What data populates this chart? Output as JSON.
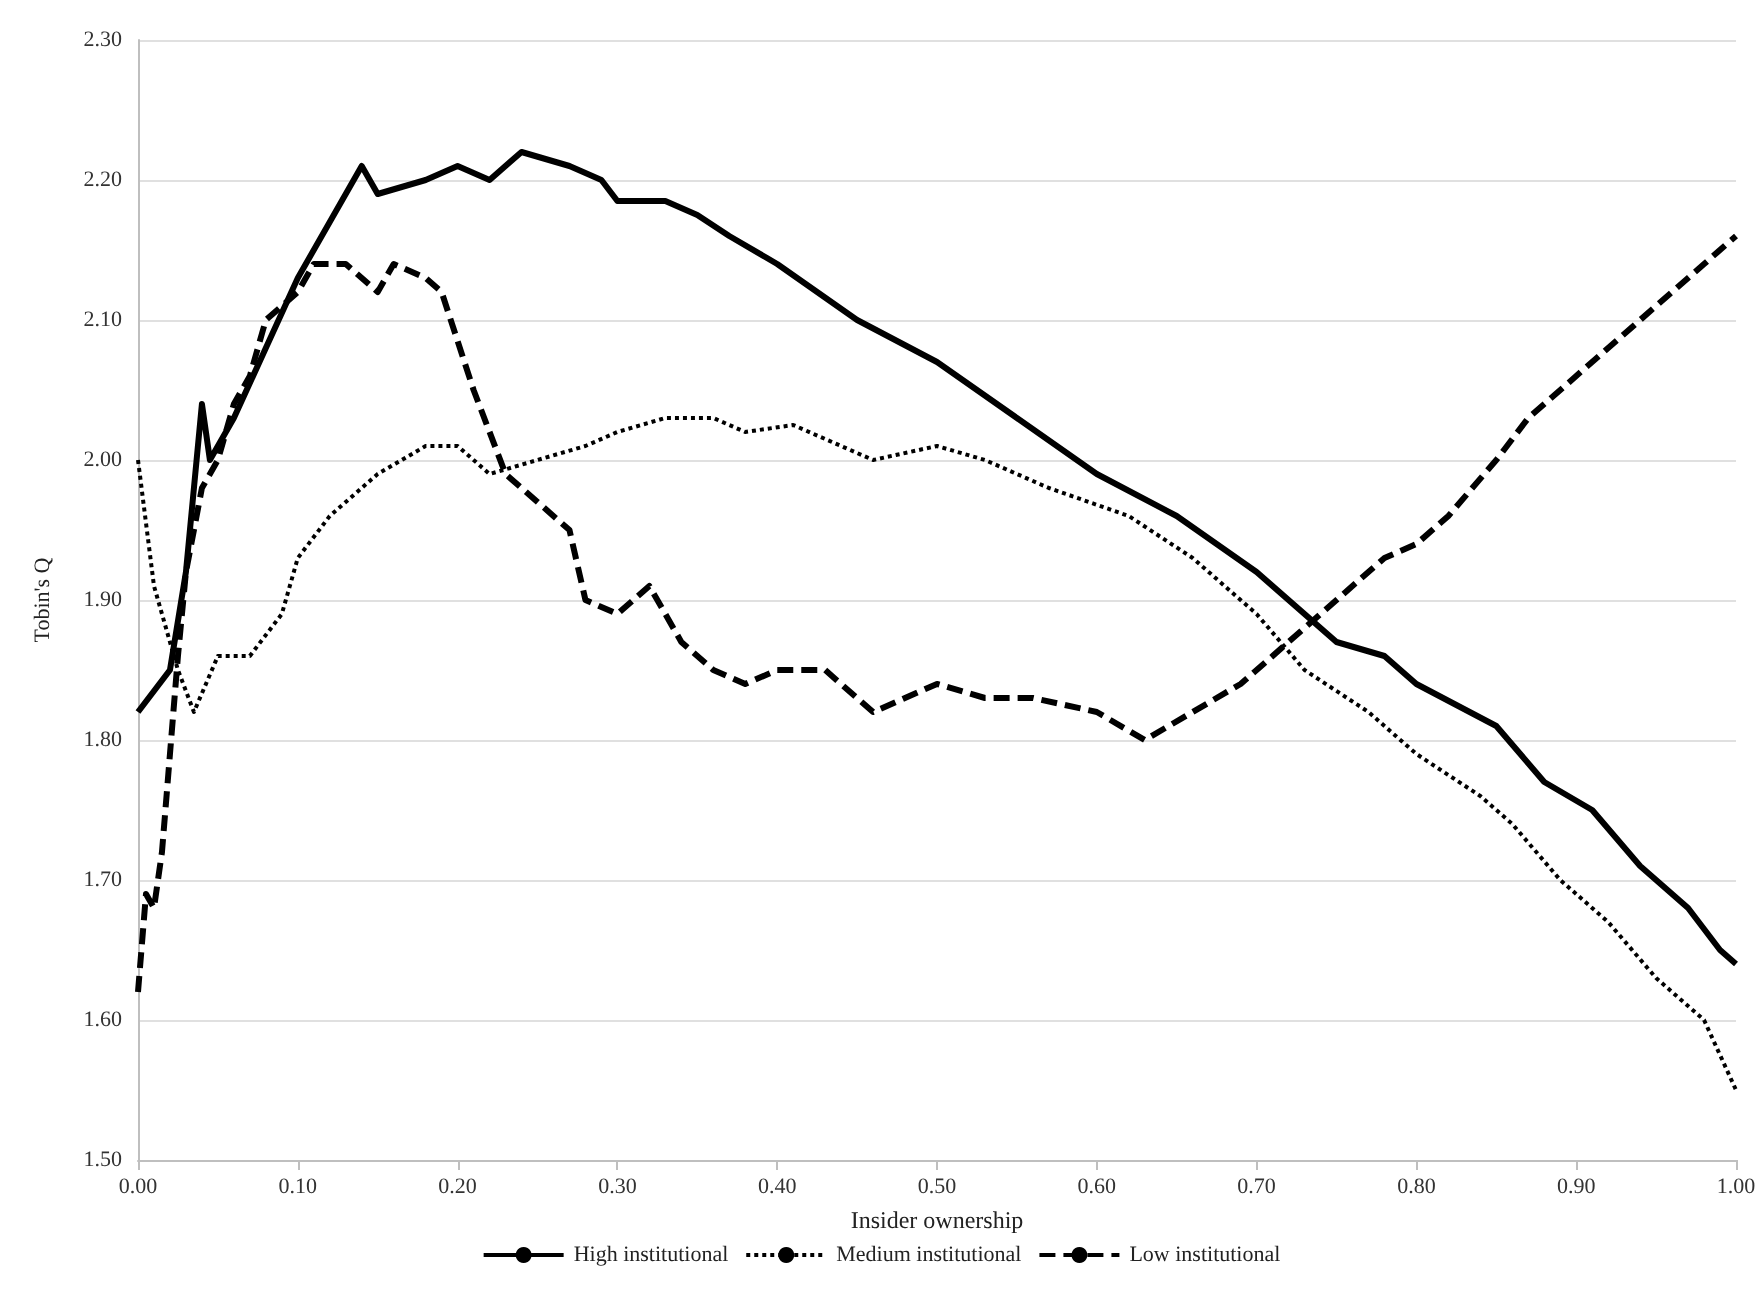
{
  "chart_data": {
    "type": "line",
    "xlabel": "Insider ownership",
    "ylabel": "Tobin's Q",
    "xlim": [
      0,
      1
    ],
    "xticks": [
      {
        "value": 0,
        "label": "0.00"
      },
      {
        "value": 0.1,
        "label": "0.10"
      },
      {
        "value": 0.2,
        "label": "0.20"
      },
      {
        "value": 0.3,
        "label": "0.30"
      },
      {
        "value": 0.4,
        "label": "0.40"
      },
      {
        "value": 0.5,
        "label": "0.50"
      },
      {
        "value": 0.6,
        "label": "0.60"
      },
      {
        "value": 0.7,
        "label": "0.70"
      },
      {
        "value": 0.8,
        "label": "0.80"
      },
      {
        "value": 0.9,
        "label": "0.90"
      },
      {
        "value": 1,
        "label": "1.00"
      }
    ],
    "ylim": [
      1.5,
      2.3
    ],
    "yticks": [
      {
        "value": 1.5,
        "label": "1.50"
      },
      {
        "value": 1.6,
        "label": "1.60"
      },
      {
        "value": 1.7,
        "label": "1.70"
      },
      {
        "value": 1.8,
        "label": "1.80"
      },
      {
        "value": 1.9,
        "label": "1.90"
      },
      {
        "value": 2.0,
        "label": "2.00"
      },
      {
        "value": 2.1,
        "label": "2.10"
      },
      {
        "value": 2.2,
        "label": "2.20"
      },
      {
        "value": 2.3,
        "label": "2.30"
      }
    ],
    "grid": "y",
    "legend": "bottom",
    "marker": "none",
    "series": [
      {
        "name": "High institutional",
        "color": "#000000",
        "line_style": "solid",
        "x": [
          0,
          0.02,
          0.03,
          0.04,
          0.045,
          0.06,
          0.08,
          0.1,
          0.12,
          0.14,
          0.15,
          0.18,
          0.2,
          0.22,
          0.24,
          0.27,
          0.29,
          0.3,
          0.33,
          0.35,
          0.37,
          0.4,
          0.45,
          0.5,
          0.55,
          0.6,
          0.65,
          0.7,
          0.75,
          0.78,
          0.8,
          0.85,
          0.88,
          0.91,
          0.94,
          0.97,
          0.99,
          1
        ],
        "values": [
          1.82,
          1.85,
          1.92,
          2.04,
          2.0,
          2.03,
          2.08,
          2.13,
          2.17,
          2.21,
          2.19,
          2.2,
          2.21,
          2.2,
          2.22,
          2.21,
          2.2,
          2.185,
          2.185,
          2.175,
          2.16,
          2.14,
          2.1,
          2.07,
          2.03,
          1.99,
          1.96,
          1.92,
          1.87,
          1.86,
          1.84,
          1.81,
          1.77,
          1.75,
          1.71,
          1.68,
          1.65,
          1.64
        ]
      },
      {
        "name": "Medium institutional",
        "color": "#000000",
        "line_style": "dotted",
        "x": [
          0,
          0.01,
          0.02,
          0.025,
          0.035,
          0.05,
          0.07,
          0.09,
          0.1,
          0.12,
          0.15,
          0.18,
          0.2,
          0.22,
          0.25,
          0.28,
          0.3,
          0.33,
          0.36,
          0.38,
          0.41,
          0.44,
          0.46,
          0.5,
          0.53,
          0.57,
          0.62,
          0.66,
          0.7,
          0.73,
          0.77,
          0.8,
          0.84,
          0.86,
          0.89,
          0.92,
          0.95,
          0.98,
          1
        ],
        "values": [
          2.0,
          1.91,
          1.87,
          1.85,
          1.82,
          1.86,
          1.86,
          1.89,
          1.93,
          1.96,
          1.99,
          2.01,
          2.01,
          1.99,
          2.0,
          2.01,
          2.02,
          2.03,
          2.03,
          2.02,
          2.025,
          2.01,
          2.0,
          2.01,
          2.0,
          1.98,
          1.96,
          1.93,
          1.89,
          1.85,
          1.82,
          1.79,
          1.76,
          1.74,
          1.7,
          1.67,
          1.63,
          1.6,
          1.55
        ]
      },
      {
        "name": "Low institutional",
        "color": "#000000",
        "line_style": "dashed",
        "x": [
          0,
          0.005,
          0.01,
          0.015,
          0.02,
          0.025,
          0.03,
          0.04,
          0.05,
          0.06,
          0.07,
          0.08,
          0.1,
          0.11,
          0.13,
          0.15,
          0.16,
          0.18,
          0.19,
          0.21,
          0.23,
          0.25,
          0.27,
          0.28,
          0.3,
          0.32,
          0.34,
          0.36,
          0.38,
          0.4,
          0.43,
          0.46,
          0.5,
          0.53,
          0.56,
          0.6,
          0.63,
          0.66,
          0.69,
          0.72,
          0.75,
          0.78,
          0.8,
          0.82,
          0.85,
          0.87,
          0.9,
          0.92,
          0.95,
          0.98,
          1
        ],
        "values": [
          1.62,
          1.69,
          1.68,
          1.72,
          1.79,
          1.86,
          1.92,
          1.98,
          2.0,
          2.04,
          2.06,
          2.1,
          2.12,
          2.14,
          2.14,
          2.12,
          2.14,
          2.13,
          2.12,
          2.05,
          1.99,
          1.97,
          1.95,
          1.9,
          1.89,
          1.91,
          1.87,
          1.85,
          1.84,
          1.85,
          1.85,
          1.82,
          1.84,
          1.83,
          1.83,
          1.82,
          1.8,
          1.82,
          1.84,
          1.87,
          1.9,
          1.93,
          1.94,
          1.96,
          2.0,
          2.03,
          2.06,
          2.08,
          2.11,
          2.14,
          2.16
        ]
      }
    ]
  }
}
